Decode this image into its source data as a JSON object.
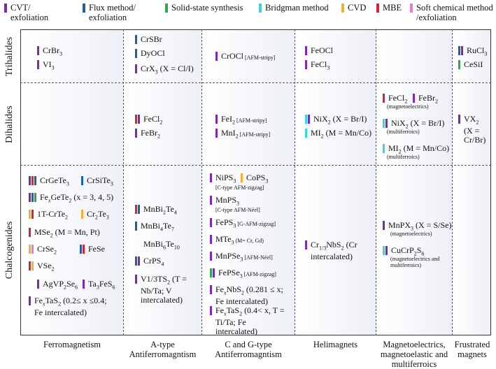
{
  "legend": [
    {
      "label": "CVT/ exfoliation",
      "color": "#7b2aa8"
    },
    {
      "label": "Flux method/ exfoliation",
      "color": "#1f5fa8"
    },
    {
      "label": "Solid-state synthesis",
      "color": "#2ea84a"
    },
    {
      "label": "Bridgman method",
      "color": "#36d6e6"
    },
    {
      "label": "CVD",
      "color": "#f2b134"
    },
    {
      "label": "MBE",
      "color": "#d9232f"
    },
    {
      "label": "Soft chemical method /exfoliation",
      "color": "#e67ad9"
    }
  ],
  "rows": [
    "Trihalides",
    "Dihalides",
    "Chalcogenides"
  ],
  "columns": [
    "Ferromagnetism",
    "A-type Antiferromagntism",
    "C and G-type Antiferromagntism",
    "Helimagnets",
    "Magnetoelectrics, magnetoelastic and multiferroics",
    "Frustrated magnets"
  ],
  "cells": {
    "tri_ferro": [
      {
        "text": "CrBr3",
        "bars": [
          "#7b2aa8"
        ]
      },
      {
        "text": "VI3",
        "bars": [
          "#7b2aa8"
        ]
      }
    ],
    "tri_atype": [
      {
        "text": "CrSBr",
        "bars": [
          "#1f5fa8"
        ]
      },
      {
        "text": "DyOCl",
        "bars": [
          "#1f5fa8"
        ]
      },
      {
        "text": "CrX3 (X = Cl/I)",
        "bars": [
          "#7b2aa8"
        ]
      }
    ],
    "tri_cg": [
      {
        "text": "CrOCl",
        "ann": "[AFM-stripy]",
        "bars": [
          "#7b2aa8"
        ]
      }
    ],
    "tri_heli": [
      {
        "text": "FeOCl",
        "bars": [
          "#7b2aa8"
        ]
      },
      {
        "text": "FeCl3",
        "bars": [
          "#7b2aa8"
        ]
      }
    ],
    "tri_frust": [
      {
        "text": "RuCl3",
        "bars": [
          "#1f5fa8",
          "#7b2aa8"
        ]
      },
      {
        "text": "CeSiI",
        "bars": [
          "#2ea84a"
        ]
      }
    ],
    "di_atype": [
      {
        "text": "FeCl2",
        "bars": [
          "#d9232f",
          "#7b2aa8"
        ]
      },
      {
        "text": "FeBr2",
        "bars": [
          "#7b2aa8"
        ]
      }
    ],
    "di_cg": [
      {
        "text": "FeI2",
        "ann": "[AFM-stripy]",
        "bars": [
          "#7b2aa8"
        ]
      },
      {
        "text": "MnI2",
        "ann": "[AFM-stripy]",
        "bars": [
          "#7b2aa8"
        ]
      }
    ],
    "di_heli": [
      {
        "text": "NiX2 (X = Br/I)",
        "bars": [
          "#36d6e6",
          "#7b2aa8"
        ]
      },
      {
        "text": "MI2 (M = Mn/Co)",
        "bars": [
          "#36d6e6"
        ]
      }
    ],
    "di_me": [
      {
        "text": "FeCl2",
        "bars": [
          "#d9232f"
        ]
      },
      {
        "text": "FeBr2",
        "bars": [
          "#7b2aa8"
        ]
      },
      {
        "text": "(magnetoelectrics)"
      },
      {
        "text": "NiX2 (X = Br/I)",
        "bars": [
          "#36d6e6",
          "#7b2aa8"
        ]
      },
      {
        "text": "(multiferroics)"
      },
      {
        "text": "MI2 (M = Mn/Co)",
        "bars": [
          "#36d6e6"
        ]
      },
      {
        "text": "(multiferroics)"
      }
    ],
    "di_frust": [
      {
        "text": "VX2 (X = Cr/Br)",
        "bars": [
          "#7b2aa8"
        ]
      }
    ],
    "ch_ferro": [
      {
        "text": "CrGeTe3",
        "bars": [
          "#7b2aa8",
          "#d9232f",
          "#1f5fa8"
        ]
      },
      {
        "text": "CrSiTe3",
        "bars": [
          "#1f5fa8"
        ]
      },
      {
        "text": "FexGeTe2 (x = 3, 4, 5)",
        "bars": [
          "#7b2aa8",
          "#1f5fa8",
          "#2ea84a"
        ]
      },
      {
        "text": "1T-CrTe2",
        "bars": [
          "#f2b134",
          "#d9232f"
        ]
      },
      {
        "text": "Cr2Te3",
        "bars": [
          "#f2b134"
        ]
      },
      {
        "text": "MSe2 (M = Mn, Pt)",
        "bars": [
          "#d9232f"
        ]
      },
      {
        "text": "CrSe2",
        "bars": [
          "#f2b134",
          "#e67ad9"
        ]
      },
      {
        "text": "FeSe",
        "bars": [
          "#1f5fa8",
          "#d9232f"
        ]
      },
      {
        "text": "VSe2",
        "bars": [
          "#d9232f",
          "#f2b134"
        ]
      },
      {
        "text": "AgVP2Se6",
        "bars": [
          "#7b2aa8"
        ]
      },
      {
        "text": "Ta3FeS6",
        "bars": [
          "#7b2aa8"
        ]
      },
      {
        "text": "FexTaS2 (0.2≤ x ≤0.4; Fe intercalated)",
        "bars": [
          "#7b2aa8"
        ]
      }
    ],
    "ch_atype": [
      {
        "text": "MnBi2Te4",
        "bars": [
          "#d9232f",
          "#1f5fa8"
        ]
      },
      {
        "text": "MnBi4Te7",
        "bars": [
          "#1f5fa8"
        ]
      },
      {
        "text": "MnBi6Te10"
      },
      {
        "text": "CrPS4",
        "bars": [
          "#1f5fa8",
          "#7b2aa8"
        ]
      },
      {
        "text": "V1/3TS2 (T = Nb/Ta; V intercalated)",
        "bars": [
          "#7b2aa8"
        ]
      }
    ],
    "ch_cg": [
      {
        "text": "NiPS3",
        "ann": "[C-type AFM-zigzag]",
        "bars": [
          "#7b2aa8"
        ]
      },
      {
        "text": "CoPS3",
        "bars": [
          "#f2b134"
        ]
      },
      {
        "text": "MnPS3",
        "ann": "[C-type AFM-Néel]",
        "bars": [
          "#7b2aa8"
        ]
      },
      {
        "text": "FePS3",
        "ann": "[G-AFM-zigzag]",
        "bars": [
          "#7b2aa8"
        ]
      },
      {
        "text": "MTe3",
        "ann": "(M= Cr, Gd)",
        "bars": [
          "#7b2aa8"
        ]
      },
      {
        "text": "MnPSe3",
        "ann": "[AFM-Néel]",
        "bars": [
          "#7b2aa8"
        ]
      },
      {
        "text": "FePSe3",
        "ann": "[AFM-zigzag]",
        "bars": [
          "#2ea84a",
          "#7b2aa8"
        ]
      },
      {
        "text": "FexNbS2 (0.281 ≤ x; Fe intercalated)",
        "bars": [
          "#7b2aa8"
        ]
      },
      {
        "text": "FexTaS2 (0.4< x, T = Ti/Ta; Fe intercalated)",
        "bars": [
          "#7b2aa8"
        ]
      }
    ],
    "ch_heli": [
      {
        "text": "Cr1/3NbS2 (Cr intercalated)",
        "bars": [
          "#7b2aa8"
        ]
      }
    ],
    "ch_me": [
      {
        "text": "MnPX3 (X = S/Se)",
        "bars": [
          "#7b2aa8"
        ]
      },
      {
        "text": "(magnetoelectrics)"
      },
      {
        "text": "CuCrP2S6",
        "bars": [
          "#36d6e6",
          "#7b2aa8"
        ]
      },
      {
        "text": "(magnetoelectrics and multiferroics)"
      }
    ]
  }
}
